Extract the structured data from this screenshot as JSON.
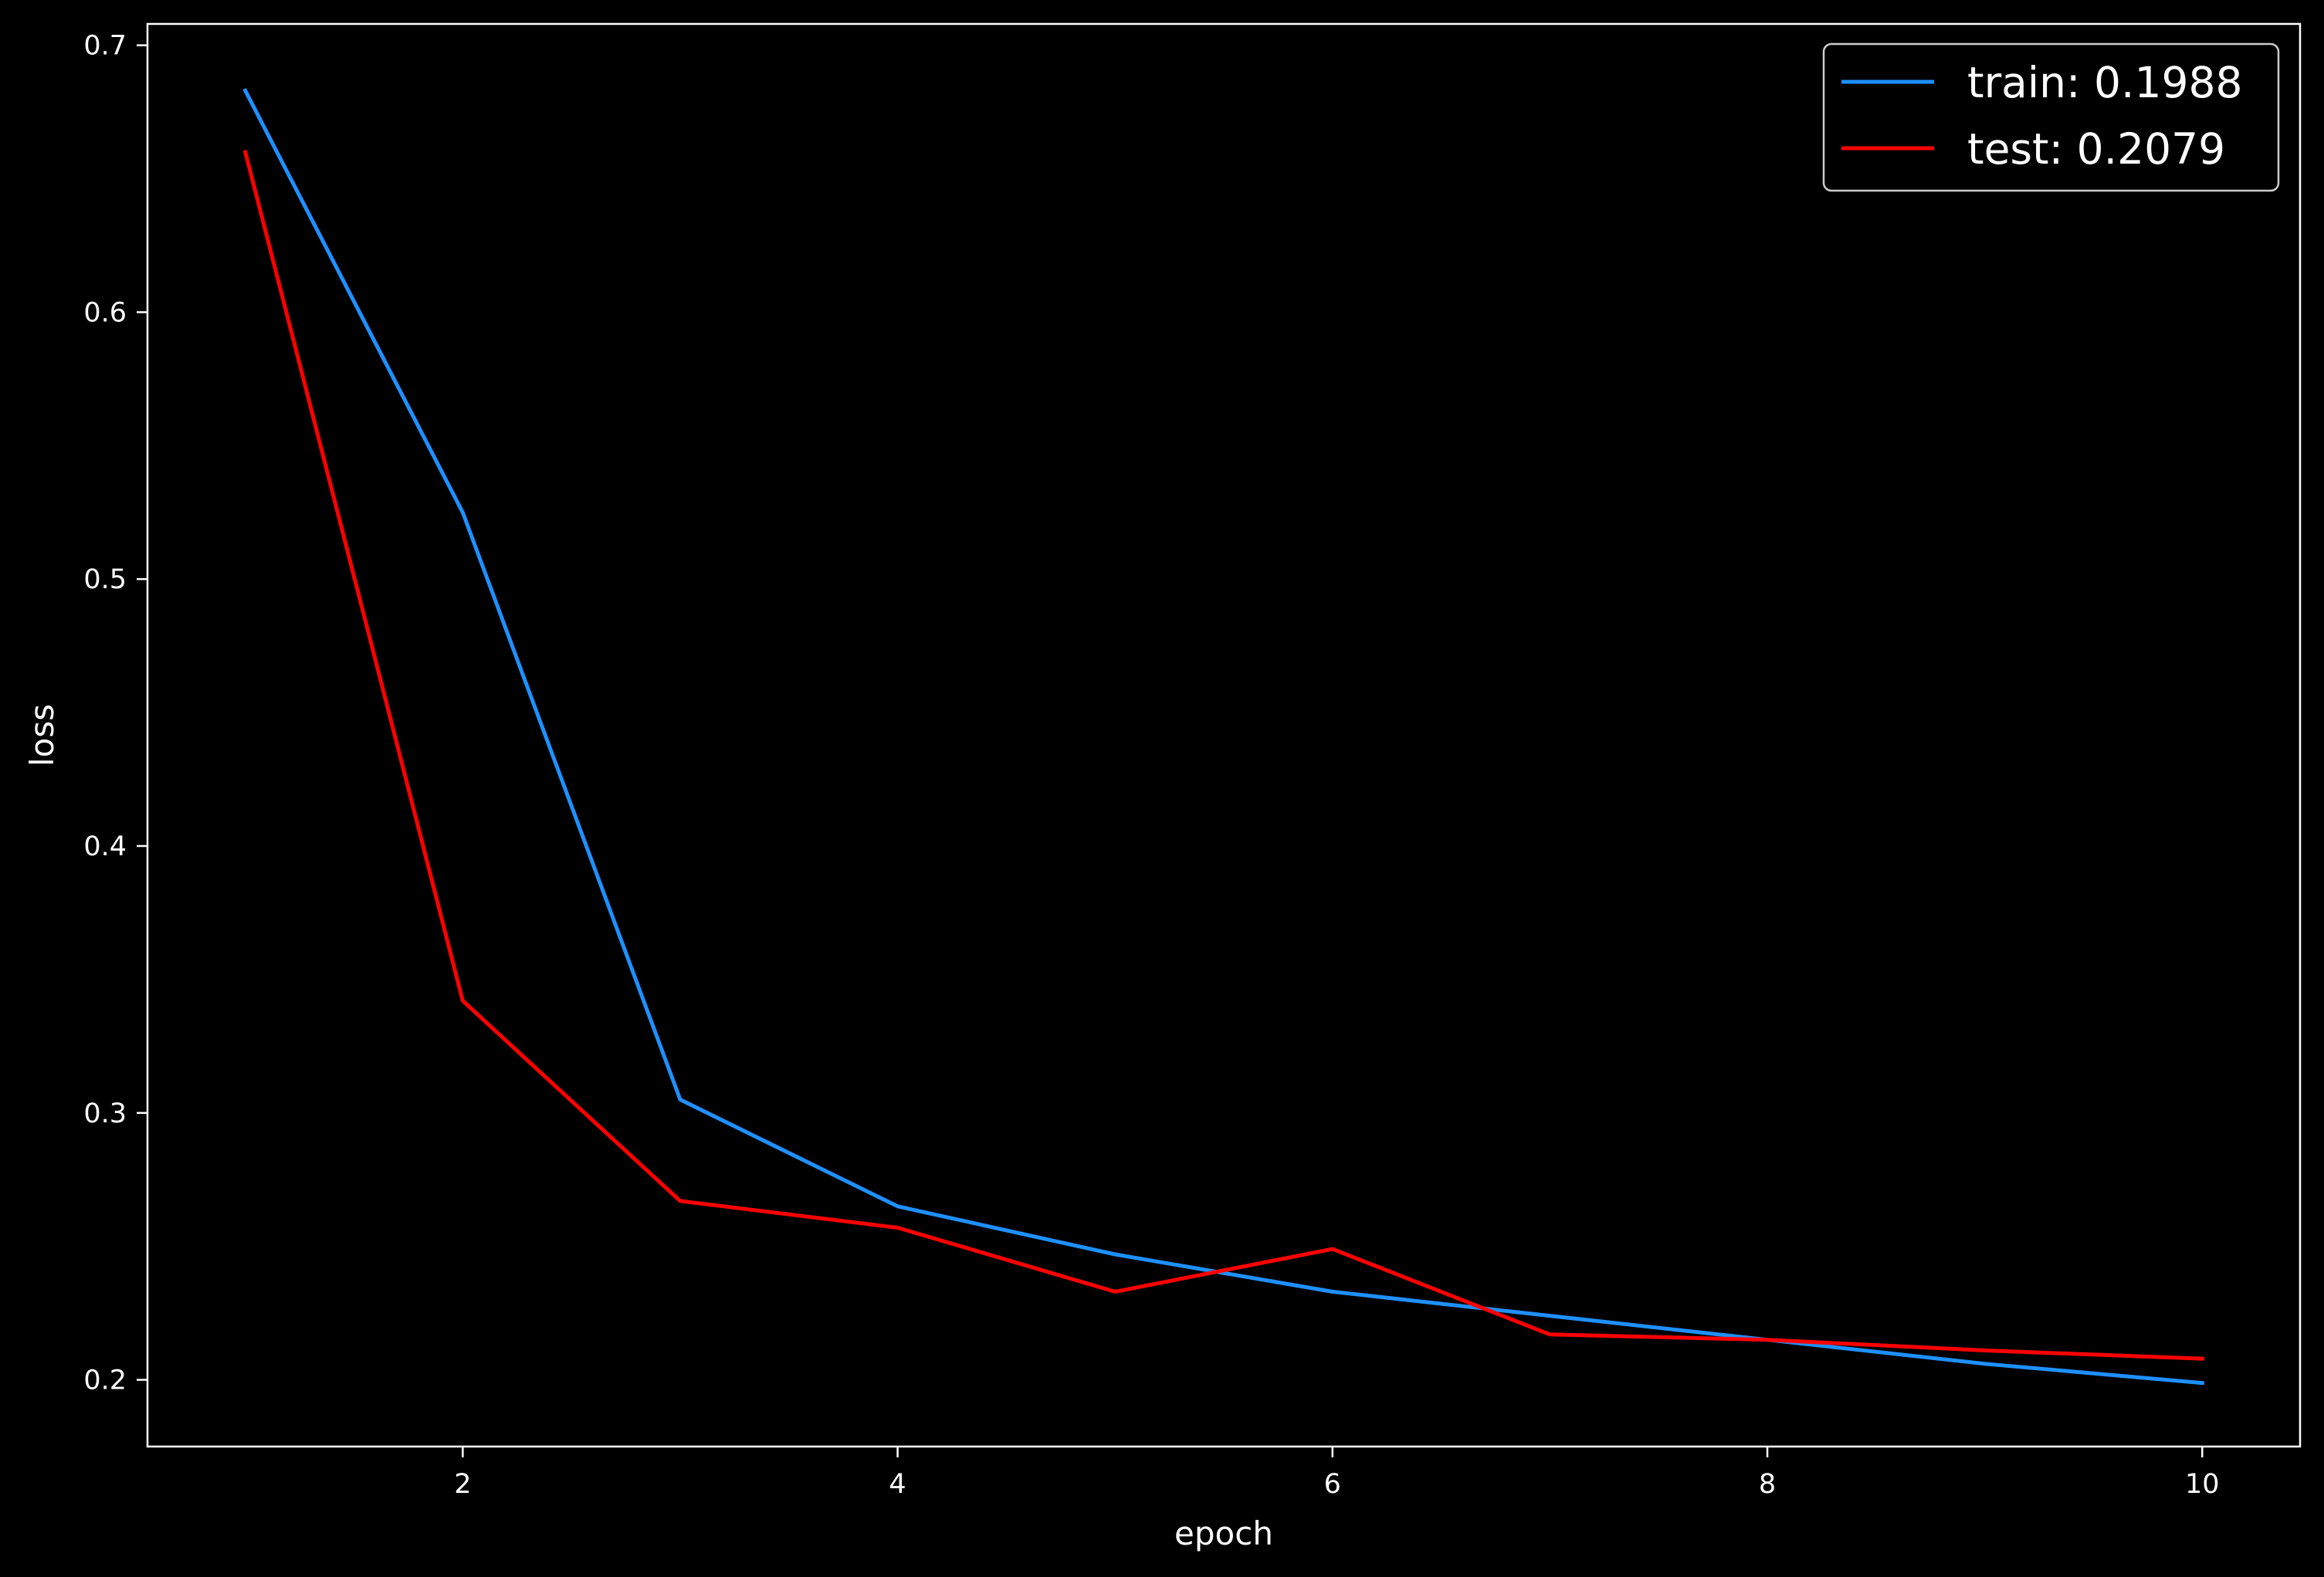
{
  "chart_data": {
    "type": "line",
    "xlabel": "epoch",
    "ylabel": "loss",
    "xlim": [
      0.55,
      10.45
    ],
    "ylim": [
      0.175,
      0.708
    ],
    "x_ticks": [
      2,
      4,
      6,
      8,
      10
    ],
    "y_ticks": [
      0.2,
      0.3,
      0.4,
      0.5,
      0.6,
      0.7
    ],
    "x_tick_labels": [
      "2",
      "4",
      "6",
      "8",
      "10"
    ],
    "y_tick_labels": [
      "0.2",
      "0.3",
      "0.4",
      "0.5",
      "0.6",
      "0.7"
    ],
    "grid": false,
    "legend_position": "top-right",
    "background_color": "#000000",
    "axis_color": "#ffffff",
    "series": [
      {
        "name": "train: 0.1988",
        "color": "#1e90ff",
        "x": [
          1,
          2,
          3,
          4,
          5,
          6,
          7,
          8,
          9,
          10
        ],
        "y": [
          0.683,
          0.525,
          0.305,
          0.265,
          0.247,
          0.233,
          0.224,
          0.215,
          0.206,
          0.1988
        ]
      },
      {
        "name": "test: 0.2079",
        "color": "#ff0000",
        "x": [
          1,
          2,
          3,
          4,
          5,
          6,
          7,
          8,
          9,
          10
        ],
        "y": [
          0.66,
          0.342,
          0.267,
          0.257,
          0.233,
          0.249,
          0.217,
          0.215,
          0.211,
          0.2079
        ]
      }
    ]
  }
}
